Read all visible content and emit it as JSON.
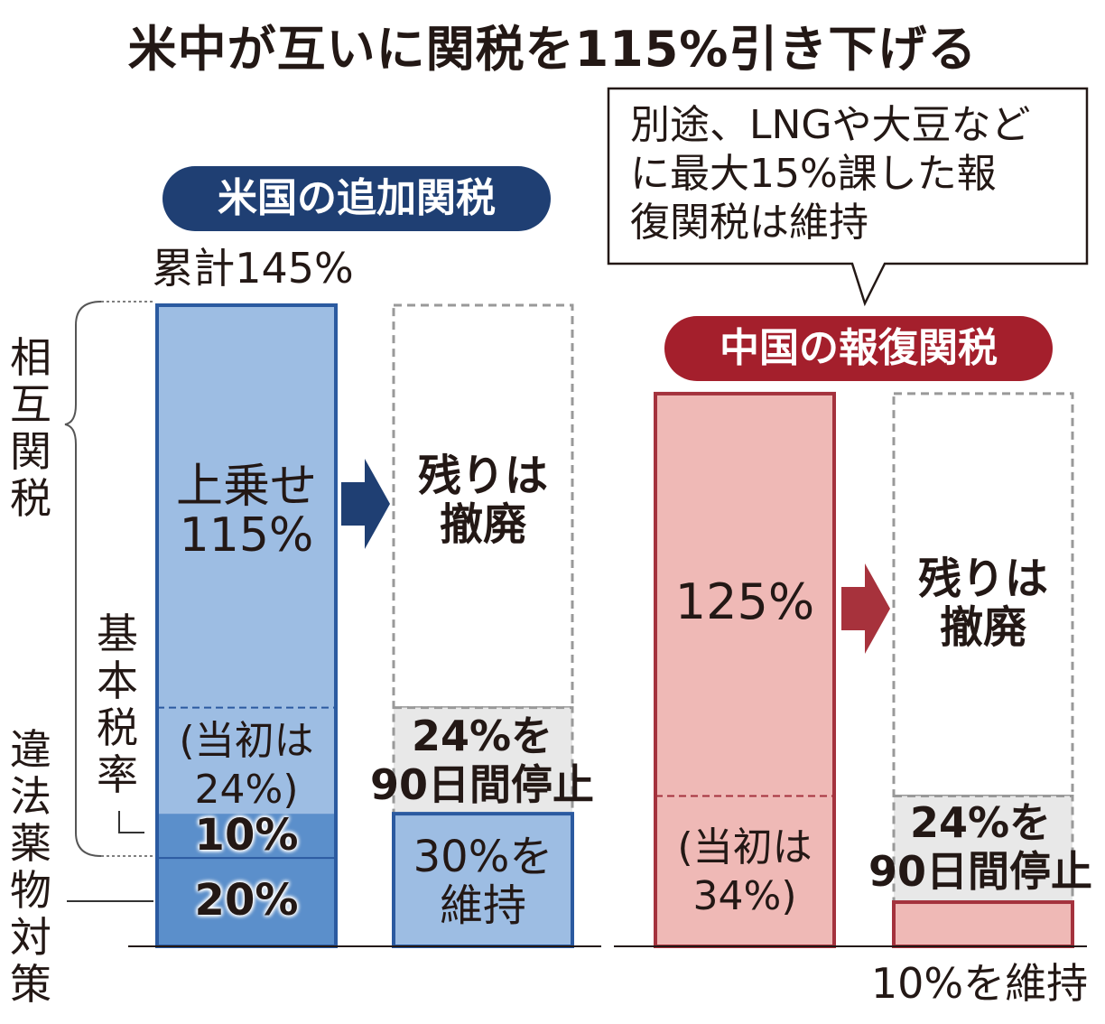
{
  "title": "米中が互いに関税を115%引き下げる",
  "colors": {
    "us_dark": "#1f3f73",
    "us_bar": "#9dbde3",
    "us_bar_deep": "#5b8fcb",
    "us_border": "#2b5aa0",
    "cn_dark": "#a41f2c",
    "cn_bar": "#efb9b6",
    "cn_border": "#a4323d",
    "dashed": "#999999",
    "baseline": "#231815"
  },
  "us": {
    "header": "米国の追加関税",
    "total_label": "累計145%",
    "side_reciprocal": "相互関税",
    "side_base_rate": "基本税率",
    "side_drug": "違法薬物対策",
    "surcharge_label": "上乗せ\n115%",
    "initial_label": "(当初は\n24%)",
    "base10_label": "10%",
    "drug20_label": "20%",
    "removed_label": "残りは\n撤廃",
    "paused_label": "24%を\n90日間停止",
    "kept_label": "30%を\n維持"
  },
  "china": {
    "header": "中国の報復関税",
    "surcharge_label": "125%",
    "initial_label": "(当初は\n34%)",
    "removed_label": "残りは\n撤廃",
    "paused_label": "24%を\n90日間停止",
    "kept_label": "10%を維持"
  },
  "callout": "別途、LNGや大豆など\nに最大15%課した報\n復関税は維持",
  "chart_data": [
    {
      "type": "bar",
      "stacked": true,
      "title": "米国の追加関税",
      "categories": [
        "",
        ""
      ],
      "series": [
        {
          "name": "違法薬物対策",
          "values": [
            20,
            20
          ]
        },
        {
          "name": "基本税率",
          "values": [
            10,
            10
          ]
        },
        {
          "name": "当初は24%",
          "values": [
            24,
            24
          ]
        },
        {
          "name": "上乗せ",
          "values": [
            91,
            91
          ]
        }
      ],
      "status": [
        "before",
        "after: 24% paused 90 days, rest removed, 30% maintained"
      ],
      "total_before": 145,
      "reduction": 115,
      "total_after": 30
    },
    {
      "type": "bar",
      "stacked": true,
      "title": "中国の報復関税",
      "categories": [
        "",
        ""
      ],
      "series": [
        {
          "name": "基本",
          "values": [
            10,
            10
          ]
        },
        {
          "name": "当初は34%",
          "values": [
            24,
            24
          ]
        },
        {
          "name": "上乗せ",
          "values": [
            91,
            91
          ]
        }
      ],
      "status": [
        "before",
        "after: 24% paused 90 days, rest removed, 10% maintained"
      ],
      "total_before": 125,
      "reduction": 115,
      "total_after": 10
    }
  ]
}
